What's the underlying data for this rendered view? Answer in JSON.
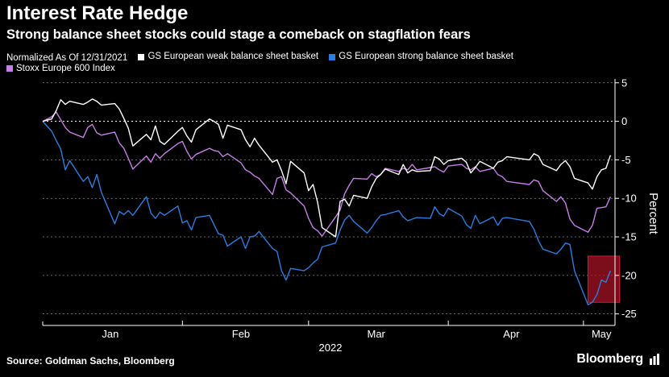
{
  "header": {
    "title": "Interest Rate Hedge",
    "subtitle": "Strong balance sheet stocks could stage a comeback on stagflation fears"
  },
  "footer": {
    "source": "Source: Goldman Sachs, Bloomberg",
    "brand": "Bloomberg"
  },
  "chart_data": {
    "type": "line",
    "legend_note": "Normalized As Of 12/31/2021",
    "ylabel": "Percent",
    "xlabel": "2022",
    "ylim": [
      -26.5,
      5.5
    ],
    "yticks": [
      5,
      0,
      -5,
      -10,
      -15,
      -20,
      -25
    ],
    "xlim": [
      "2022-01-01",
      "2022-05-08"
    ],
    "xticks": [
      {
        "label": "Jan",
        "date": "2022-01-16"
      },
      {
        "label": "Feb",
        "date": "2022-02-14"
      },
      {
        "label": "Mar",
        "date": "2022-03-16"
      },
      {
        "label": "Apr",
        "date": "2022-04-15"
      },
      {
        "label": "May",
        "date": "2022-05-05"
      }
    ],
    "grid": true,
    "legend_position": "top",
    "highlight": {
      "x_start": "2022-05-02",
      "x_end": "2022-05-09",
      "y_start": -17.5,
      "y_end": -23.5,
      "color": "#b01327"
    },
    "series": [
      {
        "name": "GS European weak balance sheet basket",
        "color": "#ffffff",
        "points": [
          [
            "2022-01-01",
            0
          ],
          [
            "2022-01-03",
            0.3
          ],
          [
            "2022-01-04",
            1.4
          ],
          [
            "2022-01-05",
            2.8
          ],
          [
            "2022-01-06",
            2.2
          ],
          [
            "2022-01-07",
            2.6
          ],
          [
            "2022-01-10",
            2.2
          ],
          [
            "2022-01-11",
            2.5
          ],
          [
            "2022-01-12",
            2.9
          ],
          [
            "2022-01-13",
            2.6
          ],
          [
            "2022-01-14",
            2.1
          ],
          [
            "2022-01-17",
            2.3
          ],
          [
            "2022-01-18",
            1.6
          ],
          [
            "2022-01-19",
            0.4
          ],
          [
            "2022-01-20",
            -0.9
          ],
          [
            "2022-01-21",
            -3.2
          ],
          [
            "2022-01-24",
            -1.7
          ],
          [
            "2022-01-25",
            -2.4
          ],
          [
            "2022-01-26",
            -0.6
          ],
          [
            "2022-01-27",
            -2.6
          ],
          [
            "2022-01-28",
            -3.0
          ],
          [
            "2022-01-31",
            -1.3
          ],
          [
            "2022-02-01",
            -0.8
          ],
          [
            "2022-02-02",
            -1.9
          ],
          [
            "2022-02-03",
            -2.7
          ],
          [
            "2022-02-04",
            -1.1
          ],
          [
            "2022-02-07",
            0.3
          ],
          [
            "2022-02-08",
            0
          ],
          [
            "2022-02-09",
            -0.4
          ],
          [
            "2022-02-10",
            -2.2
          ],
          [
            "2022-02-11",
            -0.5
          ],
          [
            "2022-02-14",
            -1.1
          ],
          [
            "2022-02-15",
            -2.4
          ],
          [
            "2022-02-16",
            -3.3
          ],
          [
            "2022-02-17",
            -2.2
          ],
          [
            "2022-02-18",
            -3.1
          ],
          [
            "2022-02-21",
            -5.3
          ],
          [
            "2022-02-22",
            -5.0
          ],
          [
            "2022-02-23",
            -6.4
          ],
          [
            "2022-02-24",
            -8.1
          ],
          [
            "2022-02-25",
            -5.2
          ],
          [
            "2022-02-28",
            -6.7
          ],
          [
            "2022-03-01",
            -9.0
          ],
          [
            "2022-03-02",
            -8.2
          ],
          [
            "2022-03-03",
            -10.5
          ],
          [
            "2022-03-04",
            -13.8
          ],
          [
            "2022-03-07",
            -15.0
          ],
          [
            "2022-03-08",
            -10.4
          ],
          [
            "2022-03-09",
            -10.1
          ],
          [
            "2022-03-10",
            -11.0
          ],
          [
            "2022-03-11",
            -9.6
          ],
          [
            "2022-03-14",
            -10.0
          ],
          [
            "2022-03-15",
            -8.5
          ],
          [
            "2022-03-16",
            -7.4
          ],
          [
            "2022-03-17",
            -6.9
          ],
          [
            "2022-03-18",
            -6.2
          ],
          [
            "2022-03-21",
            -6.9
          ],
          [
            "2022-03-22",
            -5.6
          ],
          [
            "2022-03-23",
            -6.7
          ],
          [
            "2022-03-24",
            -6.3
          ],
          [
            "2022-03-25",
            -6.5
          ],
          [
            "2022-03-28",
            -6.4
          ],
          [
            "2022-03-29",
            -4.6
          ],
          [
            "2022-03-30",
            -4.9
          ],
          [
            "2022-03-31",
            -5.6
          ],
          [
            "2022-04-01",
            -5.1
          ],
          [
            "2022-04-04",
            -4.8
          ],
          [
            "2022-04-05",
            -5.3
          ],
          [
            "2022-04-06",
            -6.7
          ],
          [
            "2022-04-07",
            -6.0
          ],
          [
            "2022-04-08",
            -5.2
          ],
          [
            "2022-04-11",
            -6.1
          ],
          [
            "2022-04-12",
            -5.3
          ],
          [
            "2022-04-13",
            -5.1
          ],
          [
            "2022-04-14",
            -4.6
          ],
          [
            "2022-04-19",
            -5.0
          ],
          [
            "2022-04-20",
            -4.2
          ],
          [
            "2022-04-21",
            -4.5
          ],
          [
            "2022-04-22",
            -5.6
          ],
          [
            "2022-04-25",
            -6.4
          ],
          [
            "2022-04-26",
            -5.6
          ],
          [
            "2022-04-27",
            -5.1
          ],
          [
            "2022-04-28",
            -5.9
          ],
          [
            "2022-04-29",
            -7.4
          ],
          [
            "2022-05-02",
            -8.0
          ],
          [
            "2022-05-03",
            -8.8
          ],
          [
            "2022-05-04",
            -7.2
          ],
          [
            "2022-05-05",
            -6.3
          ],
          [
            "2022-05-06",
            -6.1
          ],
          [
            "2022-05-07",
            -4.4
          ]
        ]
      },
      {
        "name": "GS European strong balance sheet basket",
        "color": "#2a7de1",
        "points": [
          [
            "2022-01-01",
            0
          ],
          [
            "2022-01-03",
            -1.3
          ],
          [
            "2022-01-04",
            -2.5
          ],
          [
            "2022-01-05",
            -3.6
          ],
          [
            "2022-01-06",
            -6.3
          ],
          [
            "2022-01-07",
            -5.1
          ],
          [
            "2022-01-10",
            -7.8
          ],
          [
            "2022-01-11",
            -7.2
          ],
          [
            "2022-01-12",
            -8.6
          ],
          [
            "2022-01-13",
            -6.9
          ],
          [
            "2022-01-14",
            -9.2
          ],
          [
            "2022-01-17",
            -13.3
          ],
          [
            "2022-01-18",
            -11.7
          ],
          [
            "2022-01-19",
            -12.1
          ],
          [
            "2022-01-20",
            -11.6
          ],
          [
            "2022-01-21",
            -12.2
          ],
          [
            "2022-01-24",
            -9.8
          ],
          [
            "2022-01-25",
            -11.9
          ],
          [
            "2022-01-26",
            -12.6
          ],
          [
            "2022-01-27",
            -11.8
          ],
          [
            "2022-01-28",
            -12.2
          ],
          [
            "2022-01-31",
            -11.0
          ],
          [
            "2022-02-01",
            -13.2
          ],
          [
            "2022-02-02",
            -12.9
          ],
          [
            "2022-02-03",
            -14.1
          ],
          [
            "2022-02-04",
            -12.5
          ],
          [
            "2022-02-07",
            -12.2
          ],
          [
            "2022-02-08",
            -13.4
          ],
          [
            "2022-02-09",
            -14.6
          ],
          [
            "2022-02-10",
            -14.8
          ],
          [
            "2022-02-11",
            -16.2
          ],
          [
            "2022-02-14",
            -15.0
          ],
          [
            "2022-02-15",
            -16.5
          ],
          [
            "2022-02-16",
            -15.0
          ],
          [
            "2022-02-17",
            -14.9
          ],
          [
            "2022-02-18",
            -14.3
          ],
          [
            "2022-02-21",
            -16.5
          ],
          [
            "2022-02-22",
            -16.9
          ],
          [
            "2022-02-23",
            -19.4
          ],
          [
            "2022-02-24",
            -20.6
          ],
          [
            "2022-02-25",
            -19.1
          ],
          [
            "2022-02-28",
            -19.4
          ],
          [
            "2022-03-01",
            -19.0
          ],
          [
            "2022-03-02",
            -18.4
          ],
          [
            "2022-03-03",
            -17.9
          ],
          [
            "2022-03-04",
            -16.3
          ],
          [
            "2022-03-07",
            -15.8
          ],
          [
            "2022-03-08",
            -14.1
          ],
          [
            "2022-03-09",
            -12.8
          ],
          [
            "2022-03-10",
            -12.2
          ],
          [
            "2022-03-11",
            -13.0
          ],
          [
            "2022-03-14",
            -14.5
          ],
          [
            "2022-03-15",
            -13.8
          ],
          [
            "2022-03-16",
            -12.9
          ],
          [
            "2022-03-17",
            -12.2
          ],
          [
            "2022-03-18",
            -12.1
          ],
          [
            "2022-03-21",
            -11.6
          ],
          [
            "2022-03-22",
            -12.4
          ],
          [
            "2022-03-23",
            -12.9
          ],
          [
            "2022-03-24",
            -12.7
          ],
          [
            "2022-03-25",
            -12.5
          ],
          [
            "2022-03-28",
            -12.6
          ],
          [
            "2022-03-29",
            -11.1
          ],
          [
            "2022-03-30",
            -12.0
          ],
          [
            "2022-03-31",
            -12.3
          ],
          [
            "2022-04-01",
            -11.3
          ],
          [
            "2022-04-04",
            -12.3
          ],
          [
            "2022-04-05",
            -13.4
          ],
          [
            "2022-04-06",
            -13.9
          ],
          [
            "2022-04-07",
            -12.2
          ],
          [
            "2022-04-08",
            -13.3
          ],
          [
            "2022-04-11",
            -12.4
          ],
          [
            "2022-04-12",
            -13.5
          ],
          [
            "2022-04-13",
            -12.6
          ],
          [
            "2022-04-14",
            -12.5
          ],
          [
            "2022-04-19",
            -13.0
          ],
          [
            "2022-04-20",
            -14.0
          ],
          [
            "2022-04-21",
            -15.5
          ],
          [
            "2022-04-22",
            -16.6
          ],
          [
            "2022-04-25",
            -17.2
          ],
          [
            "2022-04-26",
            -16.6
          ],
          [
            "2022-04-27",
            -15.8
          ],
          [
            "2022-04-28",
            -16.0
          ],
          [
            "2022-04-29",
            -19.4
          ],
          [
            "2022-05-02",
            -23.8
          ],
          [
            "2022-05-03",
            -23.5
          ],
          [
            "2022-05-04",
            -22.5
          ],
          [
            "2022-05-05",
            -20.6
          ],
          [
            "2022-05-06",
            -20.9
          ],
          [
            "2022-05-07",
            -19.4
          ]
        ]
      },
      {
        "name": "Stoxx Europe 600 Index",
        "color": "#c77dea",
        "points": [
          [
            "2022-01-01",
            0
          ],
          [
            "2022-01-03",
            0.6
          ],
          [
            "2022-01-04",
            1.2
          ],
          [
            "2022-01-05",
            0.2
          ],
          [
            "2022-01-06",
            -0.8
          ],
          [
            "2022-01-07",
            -1.4
          ],
          [
            "2022-01-10",
            -2.1
          ],
          [
            "2022-01-11",
            -0.8
          ],
          [
            "2022-01-12",
            -0.4
          ],
          [
            "2022-01-13",
            -1.5
          ],
          [
            "2022-01-14",
            -1.8
          ],
          [
            "2022-01-17",
            -1.4
          ],
          [
            "2022-01-18",
            -2.8
          ],
          [
            "2022-01-19",
            -3.5
          ],
          [
            "2022-01-20",
            -4.8
          ],
          [
            "2022-01-21",
            -6.2
          ],
          [
            "2022-01-24",
            -4.5
          ],
          [
            "2022-01-25",
            -5.3
          ],
          [
            "2022-01-26",
            -4.2
          ],
          [
            "2022-01-27",
            -4.8
          ],
          [
            "2022-01-28",
            -4.2
          ],
          [
            "2022-01-31",
            -2.9
          ],
          [
            "2022-02-01",
            -2.6
          ],
          [
            "2022-02-02",
            -3.9
          ],
          [
            "2022-02-03",
            -4.9
          ],
          [
            "2022-02-04",
            -4.3
          ],
          [
            "2022-02-07",
            -3.5
          ],
          [
            "2022-02-08",
            -3.8
          ],
          [
            "2022-02-09",
            -3.9
          ],
          [
            "2022-02-10",
            -4.6
          ],
          [
            "2022-02-11",
            -4.2
          ],
          [
            "2022-02-14",
            -5.4
          ],
          [
            "2022-02-15",
            -6.3
          ],
          [
            "2022-02-16",
            -6.6
          ],
          [
            "2022-02-17",
            -7.1
          ],
          [
            "2022-02-18",
            -7.4
          ],
          [
            "2022-02-21",
            -9.5
          ],
          [
            "2022-02-22",
            -7.4
          ],
          [
            "2022-02-23",
            -7.2
          ],
          [
            "2022-02-24",
            -8.9
          ],
          [
            "2022-02-25",
            -9.3
          ],
          [
            "2022-02-28",
            -11.0
          ],
          [
            "2022-03-01",
            -12.6
          ],
          [
            "2022-03-02",
            -13.8
          ],
          [
            "2022-03-03",
            -14.2
          ],
          [
            "2022-03-04",
            -14.9
          ],
          [
            "2022-03-07",
            -12.4
          ],
          [
            "2022-03-08",
            -11.5
          ],
          [
            "2022-03-09",
            -9.4
          ],
          [
            "2022-03-10",
            -8.3
          ],
          [
            "2022-03-11",
            -7.4
          ],
          [
            "2022-03-14",
            -7.5
          ],
          [
            "2022-03-15",
            -6.8
          ],
          [
            "2022-03-16",
            -7.2
          ],
          [
            "2022-03-17",
            -6.9
          ],
          [
            "2022-03-18",
            -6.1
          ],
          [
            "2022-03-21",
            -6.5
          ],
          [
            "2022-03-22",
            -6.1
          ],
          [
            "2022-03-23",
            -6.3
          ],
          [
            "2022-03-24",
            -5.6
          ],
          [
            "2022-03-25",
            -6.3
          ],
          [
            "2022-03-28",
            -6.0
          ],
          [
            "2022-03-29",
            -5.9
          ],
          [
            "2022-03-30",
            -6.3
          ],
          [
            "2022-03-31",
            -6.6
          ],
          [
            "2022-04-01",
            -5.8
          ],
          [
            "2022-04-04",
            -5.6
          ],
          [
            "2022-04-05",
            -6.1
          ],
          [
            "2022-04-06",
            -6.3
          ],
          [
            "2022-04-07",
            -5.9
          ],
          [
            "2022-04-08",
            -6.5
          ],
          [
            "2022-04-11",
            -6.1
          ],
          [
            "2022-04-12",
            -6.9
          ],
          [
            "2022-04-13",
            -7.2
          ],
          [
            "2022-04-14",
            -7.8
          ],
          [
            "2022-04-19",
            -8.2
          ],
          [
            "2022-04-20",
            -7.6
          ],
          [
            "2022-04-21",
            -7.8
          ],
          [
            "2022-04-22",
            -9.0
          ],
          [
            "2022-04-25",
            -10.4
          ],
          [
            "2022-04-26",
            -9.8
          ],
          [
            "2022-04-27",
            -10.6
          ],
          [
            "2022-04-28",
            -12.7
          ],
          [
            "2022-04-29",
            -13.5
          ],
          [
            "2022-05-02",
            -14.4
          ],
          [
            "2022-05-03",
            -13.5
          ],
          [
            "2022-05-04",
            -11.3
          ],
          [
            "2022-05-05",
            -11.2
          ],
          [
            "2022-05-06",
            -11.1
          ],
          [
            "2022-05-07",
            -9.8
          ]
        ]
      }
    ]
  }
}
